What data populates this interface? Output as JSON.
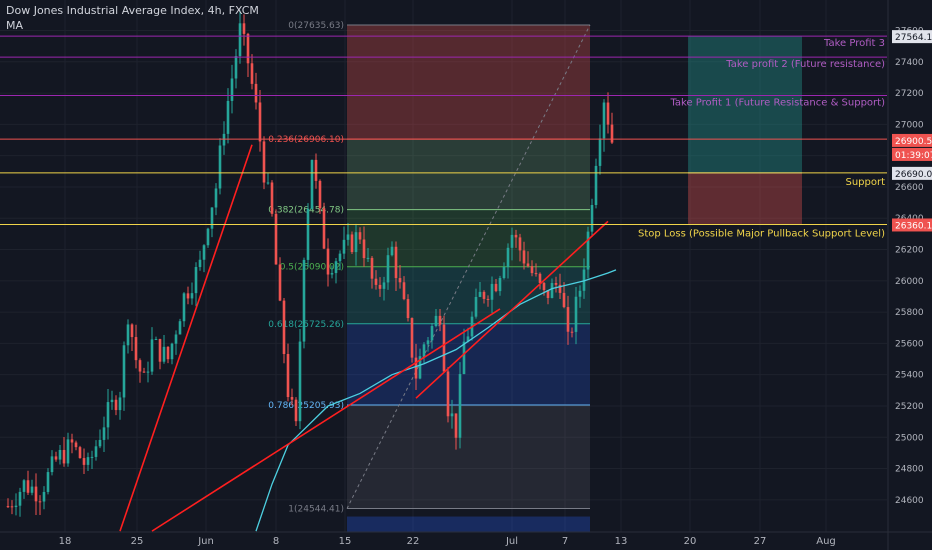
{
  "header": {
    "symbol_line": "Dow Jones Industrial Average Index, 4h, FXCM",
    "indicator": "MA"
  },
  "colors": {
    "background": "#131722",
    "up_candle": "#26a69a",
    "down_candle": "#ef5350",
    "ma_line": "#4dd0e1",
    "trend_line": "#ff1f1f",
    "purple_level": "#9c27b0",
    "yellow_level": "#f0d44a",
    "red_level": "#ef5350",
    "axis_text": "#b2b5be"
  },
  "chart_data": {
    "type": "candlestick",
    "symbol": "Dow Jones Industrial Average Index",
    "timeframe": "4h",
    "source": "FXCM",
    "ylim": [
      24420,
      27680
    ],
    "y_ticks": [
      24600,
      24800,
      25000,
      25200,
      25400,
      25600,
      25800,
      26000,
      26200,
      26400,
      26600,
      26800,
      27000,
      27200,
      27400,
      27600
    ],
    "x_ticks": [
      "18",
      "25",
      "Jun",
      "8",
      "15",
      "22",
      "Jul",
      "7",
      "13",
      "20",
      "27",
      "Aug"
    ],
    "close_path": [
      [
        0,
        24560
      ],
      [
        4,
        24700
      ],
      [
        8,
        24650
      ],
      [
        12,
        24850
      ],
      [
        16,
        24950
      ],
      [
        20,
        24800
      ],
      [
        24,
        25100
      ],
      [
        28,
        25300
      ],
      [
        30,
        25800
      ],
      [
        32,
        25500
      ],
      [
        34,
        25350
      ],
      [
        36,
        25600
      ],
      [
        40,
        25500
      ],
      [
        44,
        25900
      ],
      [
        48,
        26100
      ],
      [
        50,
        26400
      ],
      [
        52,
        26600
      ],
      [
        54,
        27000
      ],
      [
        56,
        27300
      ],
      [
        58,
        27600
      ],
      [
        60,
        27400
      ],
      [
        62,
        27100
      ],
      [
        64,
        26700
      ],
      [
        66,
        26400
      ],
      [
        68,
        25800
      ],
      [
        70,
        25300
      ],
      [
        72,
        25050
      ],
      [
        74,
        26200
      ],
      [
        76,
        26800
      ],
      [
        78,
        26400
      ],
      [
        80,
        26100
      ],
      [
        84,
        26200
      ],
      [
        88,
        26300
      ],
      [
        92,
        25900
      ],
      [
        96,
        26200
      ],
      [
        100,
        25700
      ],
      [
        102,
        25400
      ],
      [
        104,
        25600
      ],
      [
        108,
        25800
      ],
      [
        110,
        25200
      ],
      [
        112,
        25050
      ],
      [
        114,
        25600
      ],
      [
        118,
        25900
      ],
      [
        122,
        26000
      ],
      [
        126,
        26300
      ],
      [
        130,
        26100
      ],
      [
        134,
        25900
      ],
      [
        138,
        26000
      ],
      [
        140,
        25600
      ],
      [
        143,
        25950
      ],
      [
        145,
        26300
      ],
      [
        147,
        26800
      ],
      [
        149,
        27180
      ],
      [
        151,
        26900
      ]
    ],
    "ma_path": [
      [
        62,
        24400
      ],
      [
        66,
        24700
      ],
      [
        70,
        24950
      ],
      [
        74,
        25050
      ],
      [
        80,
        25200
      ],
      [
        88,
        25280
      ],
      [
        96,
        25400
      ],
      [
        104,
        25470
      ],
      [
        112,
        25560
      ],
      [
        120,
        25700
      ],
      [
        128,
        25850
      ],
      [
        136,
        25950
      ],
      [
        144,
        26000
      ],
      [
        150,
        26050
      ],
      [
        152,
        26070
      ]
    ],
    "fib_levels": [
      {
        "label": "0(27635.63)",
        "value": 27635.63
      },
      {
        "label": "0.236(26906.10)",
        "value": 26906.1
      },
      {
        "label": "0.382(26454.78)",
        "value": 26454.78
      },
      {
        "label": "0.5(26090.02)",
        "value": 26090.02
      },
      {
        "label": "0.618(25725.26)",
        "value": 25725.26
      },
      {
        "label": "0.786(25205.93)",
        "value": 25205.93
      },
      {
        "label": "1(24544.41)",
        "value": 24544.41
      }
    ],
    "horizontal_levels": [
      {
        "name": "Take Profit 3",
        "value": 27564.16
      },
      {
        "name": "Take profit 2 (Future resistance)",
        "value": 27430
      },
      {
        "name": "Take Profit 1 (Future Resistance & Support)",
        "value": 27185
      },
      {
        "name": "Support",
        "value": 26690.05
      },
      {
        "name": "Stop Loss (Possible Major Pullback Support Level)",
        "value": 26360.19
      }
    ],
    "price_badges": [
      {
        "text": "27564.16",
        "kind": "target"
      },
      {
        "text": "26900.53",
        "kind": "last"
      },
      {
        "text": "01:39:07",
        "kind": "countdown"
      },
      {
        "text": "26690.05",
        "kind": "support"
      },
      {
        "text": "26360.19",
        "kind": "stop"
      }
    ],
    "trend_lines": [
      {
        "from": [
          28,
          24400
        ],
        "to": [
          61,
          26870
        ]
      },
      {
        "from": [
          36,
          24400
        ],
        "to": [
          123,
          25820
        ]
      },
      {
        "from": [
          102,
          25250
        ],
        "to": [
          150,
          26380
        ]
      }
    ]
  }
}
